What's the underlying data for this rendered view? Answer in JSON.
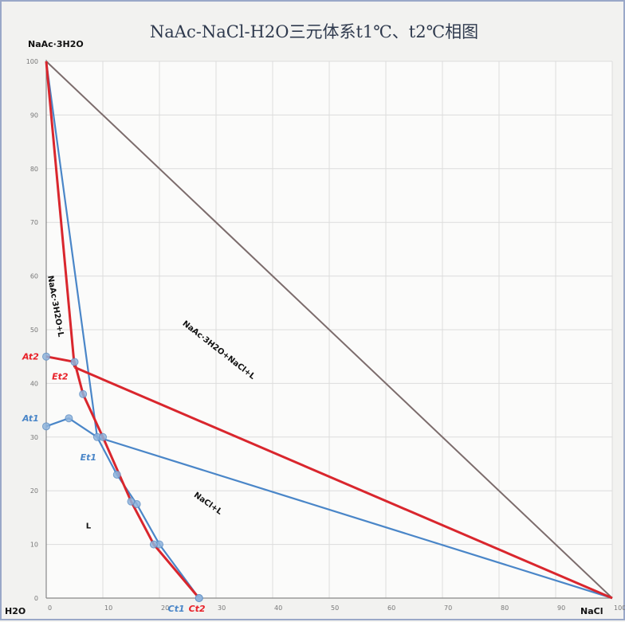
{
  "chart_data": {
    "type": "line",
    "title": "NaAc-NaCl-H2O三元体系t1℃、t2℃相图",
    "corners": {
      "top": "NaAc·3H2O",
      "origin": "H2O",
      "right": "NaCl"
    },
    "x_ticks": [
      "0",
      "10",
      "20",
      "30",
      "40",
      "50",
      "60",
      "70",
      "80",
      "90",
      "100"
    ],
    "y_ticks": [
      "0",
      "10",
      "20",
      "30",
      "40",
      "50",
      "60",
      "70",
      "80",
      "90",
      "100"
    ],
    "xlim": [
      0,
      100
    ],
    "ylim": [
      0,
      100
    ],
    "grid": true,
    "series": [
      {
        "temp": "t1",
        "color": "#4a86c8",
        "solubility_curve": [
          [
            0,
            32
          ],
          [
            4,
            33.5
          ],
          [
            9,
            30
          ],
          [
            12.5,
            23
          ],
          [
            16,
            17.5
          ],
          [
            20,
            10
          ],
          [
            27,
            0
          ]
        ],
        "tie_lines": [
          [
            [
              9,
              30
            ],
            [
              0,
              100
            ]
          ],
          [
            [
              9,
              30
            ],
            [
              100,
              0
            ]
          ]
        ],
        "labels": [
          "At1",
          "Et1",
          "Ct1"
        ]
      },
      {
        "temp": "t2",
        "color": "#d9262d",
        "solubility_curve": [
          [
            0,
            45
          ],
          [
            5,
            44
          ],
          [
            6.5,
            38
          ],
          [
            10,
            30
          ],
          [
            15,
            18
          ],
          [
            19,
            10
          ],
          [
            27,
            0
          ]
        ],
        "tie_lines": [
          [
            [
              5,
              43
            ],
            [
              0,
              100
            ]
          ],
          [
            [
              5,
              43
            ],
            [
              100,
              0
            ]
          ]
        ],
        "labels": [
          "At2",
          "Et2",
          "Ct2"
        ]
      }
    ],
    "boundary_line": [
      [
        0,
        100
      ],
      [
        100,
        0
      ]
    ],
    "boundary_color": "#7c6c6c",
    "region_labels": [
      "NaAc·3H2O+L",
      "NaAc·3H2O+NaCl+L",
      "NaCl+L",
      "L"
    ]
  }
}
